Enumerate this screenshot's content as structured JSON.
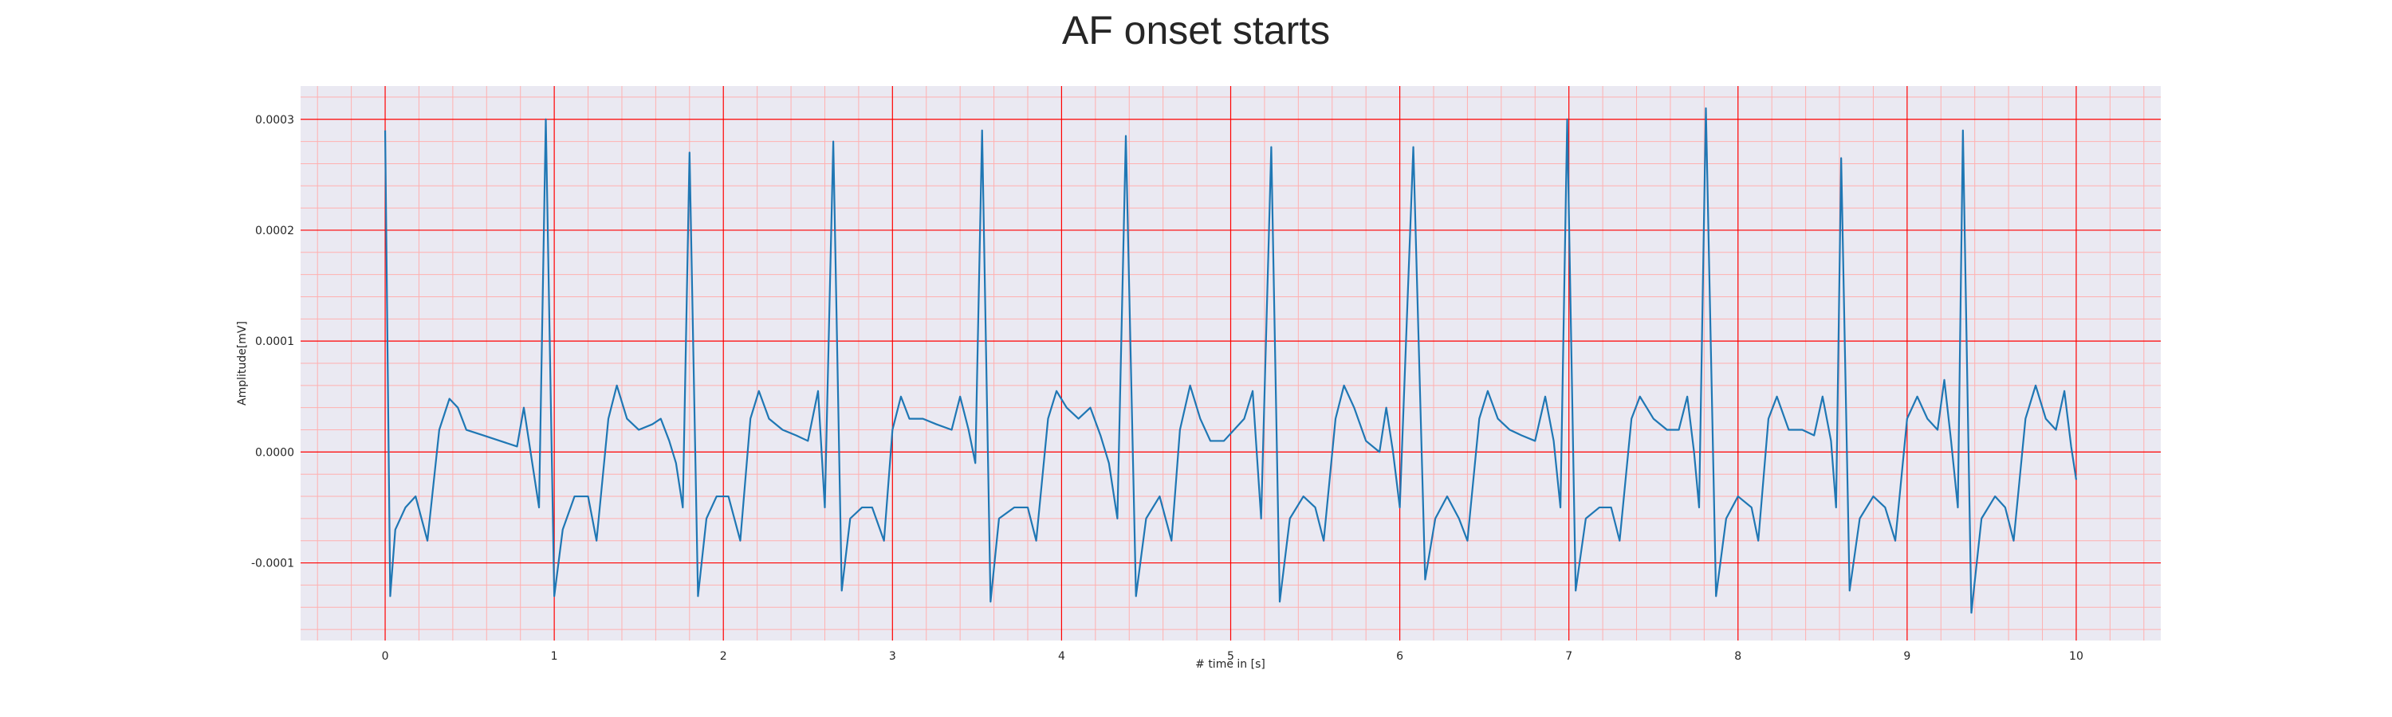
{
  "chart_data": {
    "type": "line",
    "title": "AF onset starts",
    "xlabel": "# time in [s]",
    "ylabel": "Amplitude[mV]",
    "xlim": [
      -0.5,
      10.5
    ],
    "ylim": [
      -0.00017,
      0.00033
    ],
    "x_ticks": [
      "0",
      "1",
      "2",
      "3",
      "4",
      "5",
      "6",
      "7",
      "8",
      "9",
      "10"
    ],
    "y_ticks": [
      "-0.0001",
      "0.0000",
      "0.0001",
      "0.0002",
      "0.0003"
    ],
    "grid": {
      "major": true,
      "minor": true,
      "major_color": "#ff0000",
      "minor_color": "#ffb0b0"
    },
    "colors": {
      "line": "#1f77b4",
      "plot_bg": "#eae9f2",
      "text": "#262626"
    },
    "series": [
      {
        "values": [
          [
            0,
            0.00029
          ],
          [
            0.03,
            -0.00013
          ],
          [
            0.06,
            -7e-05
          ],
          [
            0.12,
            -5e-05
          ],
          [
            0.18,
            -4e-05
          ],
          [
            0.25,
            -8e-05
          ],
          [
            0.32,
            2e-05
          ],
          [
            0.38,
            4.8e-05
          ],
          [
            0.43,
            4e-05
          ],
          [
            0.48,
            2e-05
          ],
          [
            0.58,
            1.5e-05
          ],
          [
            0.68,
            1e-05
          ],
          [
            0.78,
            5e-06
          ],
          [
            0.82,
            4e-05
          ],
          [
            0.87,
            -1e-05
          ],
          [
            0.91,
            -5e-05
          ],
          [
            0.95,
            0.0003
          ],
          [
            1.0,
            -0.00013
          ],
          [
            1.05,
            -7e-05
          ],
          [
            1.12,
            -4e-05
          ],
          [
            1.2,
            -4e-05
          ],
          [
            1.25,
            -8e-05
          ],
          [
            1.32,
            3e-05
          ],
          [
            1.37,
            6e-05
          ],
          [
            1.43,
            3e-05
          ],
          [
            1.5,
            2e-05
          ],
          [
            1.58,
            2.5e-05
          ],
          [
            1.63,
            3e-05
          ],
          [
            1.68,
            1e-05
          ],
          [
            1.72,
            -1e-05
          ],
          [
            1.76,
            -5e-05
          ],
          [
            1.8,
            0.00027
          ],
          [
            1.85,
            -0.00013
          ],
          [
            1.9,
            -6e-05
          ],
          [
            1.96,
            -4e-05
          ],
          [
            2.03,
            -4e-05
          ],
          [
            2.1,
            -8e-05
          ],
          [
            2.16,
            3e-05
          ],
          [
            2.21,
            5.5e-05
          ],
          [
            2.27,
            3e-05
          ],
          [
            2.35,
            2e-05
          ],
          [
            2.43,
            1.5e-05
          ],
          [
            2.5,
            1e-05
          ],
          [
            2.56,
            5.5e-05
          ],
          [
            2.6,
            -5e-05
          ],
          [
            2.65,
            0.00028
          ],
          [
            2.7,
            -0.000125
          ],
          [
            2.75,
            -6e-05
          ],
          [
            2.82,
            -5e-05
          ],
          [
            2.88,
            -5e-05
          ],
          [
            2.95,
            -8e-05
          ],
          [
            3.0,
            2e-05
          ],
          [
            3.05,
            5e-05
          ],
          [
            3.1,
            3e-05
          ],
          [
            3.18,
            3e-05
          ],
          [
            3.26,
            2.5e-05
          ],
          [
            3.35,
            2e-05
          ],
          [
            3.4,
            5e-05
          ],
          [
            3.45,
            2e-05
          ],
          [
            3.49,
            -1e-05
          ],
          [
            3.53,
            0.00029
          ],
          [
            3.58,
            -0.000135
          ],
          [
            3.63,
            -6e-05
          ],
          [
            3.72,
            -5e-05
          ],
          [
            3.8,
            -5e-05
          ],
          [
            3.85,
            -8e-05
          ],
          [
            3.92,
            3e-05
          ],
          [
            3.97,
            5.5e-05
          ],
          [
            4.03,
            4e-05
          ],
          [
            4.1,
            3e-05
          ],
          [
            4.17,
            4e-05
          ],
          [
            4.23,
            1.5e-05
          ],
          [
            4.28,
            -1e-05
          ],
          [
            4.33,
            -6e-05
          ],
          [
            4.38,
            0.000285
          ],
          [
            4.44,
            -0.00013
          ],
          [
            4.5,
            -6e-05
          ],
          [
            4.58,
            -4e-05
          ],
          [
            4.65,
            -8e-05
          ],
          [
            4.7,
            2e-05
          ],
          [
            4.76,
            6e-05
          ],
          [
            4.82,
            3e-05
          ],
          [
            4.88,
            1e-05
          ],
          [
            4.96,
            1e-05
          ],
          [
            5.02,
            2e-05
          ],
          [
            5.08,
            3e-05
          ],
          [
            5.13,
            5.5e-05
          ],
          [
            5.18,
            -6e-05
          ],
          [
            5.24,
            0.000275
          ],
          [
            5.29,
            -0.000135
          ],
          [
            5.35,
            -6e-05
          ],
          [
            5.43,
            -4e-05
          ],
          [
            5.5,
            -5e-05
          ],
          [
            5.55,
            -8e-05
          ],
          [
            5.62,
            3e-05
          ],
          [
            5.67,
            6e-05
          ],
          [
            5.73,
            4e-05
          ],
          [
            5.8,
            1e-05
          ],
          [
            5.88,
            0.0
          ],
          [
            5.92,
            4e-05
          ],
          [
            5.96,
            0.0
          ],
          [
            6.0,
            -5e-05
          ],
          [
            6.08,
            0.000275
          ],
          [
            6.15,
            -0.000115
          ],
          [
            6.21,
            -6e-05
          ],
          [
            6.28,
            -4e-05
          ],
          [
            6.35,
            -6e-05
          ],
          [
            6.4,
            -8e-05
          ],
          [
            6.47,
            3e-05
          ],
          [
            6.52,
            5.5e-05
          ],
          [
            6.58,
            3e-05
          ],
          [
            6.65,
            2e-05
          ],
          [
            6.72,
            1.5e-05
          ],
          [
            6.8,
            1e-05
          ],
          [
            6.86,
            5e-05
          ],
          [
            6.91,
            1e-05
          ],
          [
            6.95,
            -5e-05
          ],
          [
            6.99,
            0.0003
          ],
          [
            7.04,
            -0.000125
          ],
          [
            7.1,
            -6e-05
          ],
          [
            7.18,
            -5e-05
          ],
          [
            7.25,
            -5e-05
          ],
          [
            7.3,
            -8e-05
          ],
          [
            7.37,
            3e-05
          ],
          [
            7.42,
            5e-05
          ],
          [
            7.5,
            3e-05
          ],
          [
            7.58,
            2e-05
          ],
          [
            7.65,
            2e-05
          ],
          [
            7.7,
            5e-05
          ],
          [
            7.74,
            0.0
          ],
          [
            7.77,
            -5e-05
          ],
          [
            7.81,
            0.00031
          ],
          [
            7.87,
            -0.00013
          ],
          [
            7.93,
            -6e-05
          ],
          [
            8.0,
            -4e-05
          ],
          [
            8.08,
            -5e-05
          ],
          [
            8.12,
            -8e-05
          ],
          [
            8.18,
            3e-05
          ],
          [
            8.23,
            5e-05
          ],
          [
            8.3,
            2e-05
          ],
          [
            8.38,
            2e-05
          ],
          [
            8.45,
            1.5e-05
          ],
          [
            8.5,
            5e-05
          ],
          [
            8.55,
            1e-05
          ],
          [
            8.58,
            -5e-05
          ],
          [
            8.61,
            0.000265
          ],
          [
            8.66,
            -0.000125
          ],
          [
            8.72,
            -6e-05
          ],
          [
            8.8,
            -4e-05
          ],
          [
            8.87,
            -5e-05
          ],
          [
            8.93,
            -8e-05
          ],
          [
            9.0,
            3e-05
          ],
          [
            9.06,
            5e-05
          ],
          [
            9.12,
            3e-05
          ],
          [
            9.18,
            2e-05
          ],
          [
            9.22,
            6.5e-05
          ],
          [
            9.26,
            1e-05
          ],
          [
            9.3,
            -5e-05
          ],
          [
            9.33,
            0.00029
          ],
          [
            9.38,
            -0.000145
          ],
          [
            9.44,
            -6e-05
          ],
          [
            9.52,
            -4e-05
          ],
          [
            9.58,
            -5e-05
          ],
          [
            9.63,
            -8e-05
          ],
          [
            9.7,
            3e-05
          ],
          [
            9.76,
            6e-05
          ],
          [
            9.82,
            3e-05
          ],
          [
            9.88,
            2e-05
          ],
          [
            9.93,
            5.5e-05
          ],
          [
            9.97,
            5e-06
          ],
          [
            10.0,
            -2.5e-05
          ]
        ]
      }
    ]
  }
}
